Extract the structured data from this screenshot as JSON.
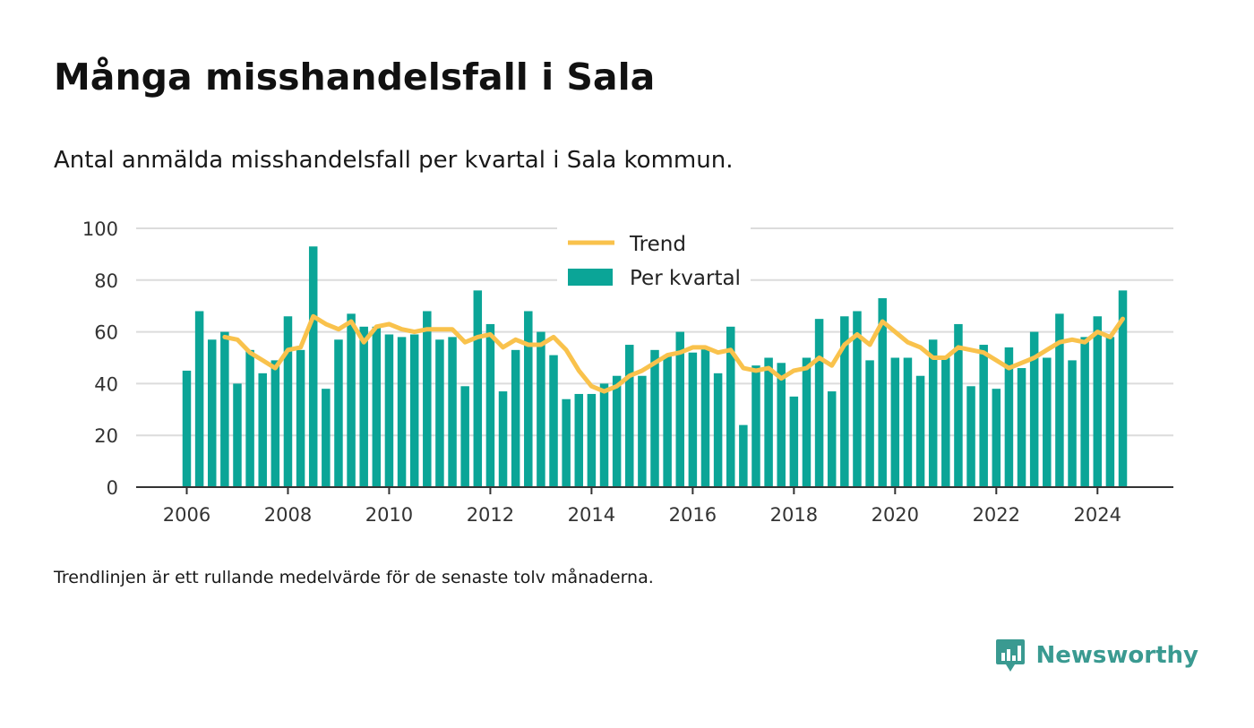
{
  "header": {
    "title": "Många misshandelsfall i Sala",
    "subtitle": "Antal anmälda misshandelsfall per kvartal i Sala kommun."
  },
  "footer": {
    "note": "Trendlinjen är ett rullande medelvärde för de senaste tolv månaderna.",
    "brand": "Newsworthy",
    "brand_icon": "newsworthy-logo-icon"
  },
  "colors": {
    "bar": "#0ba597",
    "trend": "#f9c24c",
    "grid": "#dcdcdc",
    "axis": "#333333",
    "brand": "#3a9a91"
  },
  "chart_data": {
    "type": "bar",
    "title": "Många misshandelsfall i Sala",
    "xlabel": "",
    "ylabel": "",
    "ylim": [
      0,
      100
    ],
    "yticks": [
      0,
      20,
      40,
      60,
      80,
      100
    ],
    "xticks": [
      "2006",
      "2008",
      "2010",
      "2012",
      "2014",
      "2016",
      "2018",
      "2020",
      "2022",
      "2024"
    ],
    "xlim": [
      2005.0,
      2025.5
    ],
    "grid": true,
    "legend": {
      "position": "top-center",
      "entries": [
        "Trend",
        "Per kvartal"
      ]
    },
    "x": [
      2006.0,
      2006.25,
      2006.5,
      2006.75,
      2007.0,
      2007.25,
      2007.5,
      2007.75,
      2008.0,
      2008.25,
      2008.5,
      2008.75,
      2009.0,
      2009.25,
      2009.5,
      2009.75,
      2010.0,
      2010.25,
      2010.5,
      2010.75,
      2011.0,
      2011.25,
      2011.5,
      2011.75,
      2012.0,
      2012.25,
      2012.5,
      2012.75,
      2013.0,
      2013.25,
      2013.5,
      2013.75,
      2014.0,
      2014.25,
      2014.5,
      2014.75,
      2015.0,
      2015.25,
      2015.5,
      2015.75,
      2016.0,
      2016.25,
      2016.5,
      2016.75,
      2017.0,
      2017.25,
      2017.5,
      2017.75,
      2018.0,
      2018.25,
      2018.5,
      2018.75,
      2019.0,
      2019.25,
      2019.5,
      2019.75,
      2020.0,
      2020.25,
      2020.5,
      2020.75,
      2021.0,
      2021.25,
      2021.5,
      2021.75,
      2022.0,
      2022.25,
      2022.5,
      2022.75,
      2023.0,
      2023.25,
      2023.5,
      2023.75,
      2024.0,
      2024.25,
      2024.5
    ],
    "series": [
      {
        "name": "Per kvartal",
        "type": "bar",
        "values": [
          45,
          68,
          57,
          60,
          40,
          53,
          44,
          49,
          66,
          53,
          93,
          38,
          57,
          67,
          62,
          62,
          59,
          58,
          59,
          68,
          57,
          58,
          39,
          76,
          63,
          37,
          53,
          68,
          60,
          51,
          34,
          36,
          36,
          40,
          43,
          55,
          43,
          53,
          51,
          60,
          52,
          54,
          44,
          62,
          24,
          47,
          50,
          48,
          35,
          50,
          65,
          37,
          66,
          68,
          49,
          73,
          50,
          50,
          43,
          57,
          50,
          63,
          39,
          55,
          38,
          54,
          46,
          60,
          50,
          67,
          49,
          58,
          66,
          58,
          76
        ]
      },
      {
        "name": "Trend",
        "type": "line",
        "values": [
          null,
          null,
          null,
          58,
          57,
          52,
          49,
          46,
          53,
          54,
          66,
          63,
          61,
          64,
          56,
          62,
          63,
          61,
          60,
          61,
          61,
          61,
          56,
          58,
          59,
          54,
          57,
          55,
          55,
          58,
          53,
          45,
          39,
          37,
          39,
          43,
          45,
          48,
          51,
          52,
          54,
          54,
          52,
          53,
          46,
          45,
          46,
          42,
          45,
          46,
          50,
          47,
          55,
          59,
          55,
          64,
          60,
          56,
          54,
          50,
          50,
          54,
          53,
          52,
          49,
          46,
          48,
          50,
          53,
          56,
          57,
          56,
          60,
          58,
          65
        ]
      }
    ]
  }
}
